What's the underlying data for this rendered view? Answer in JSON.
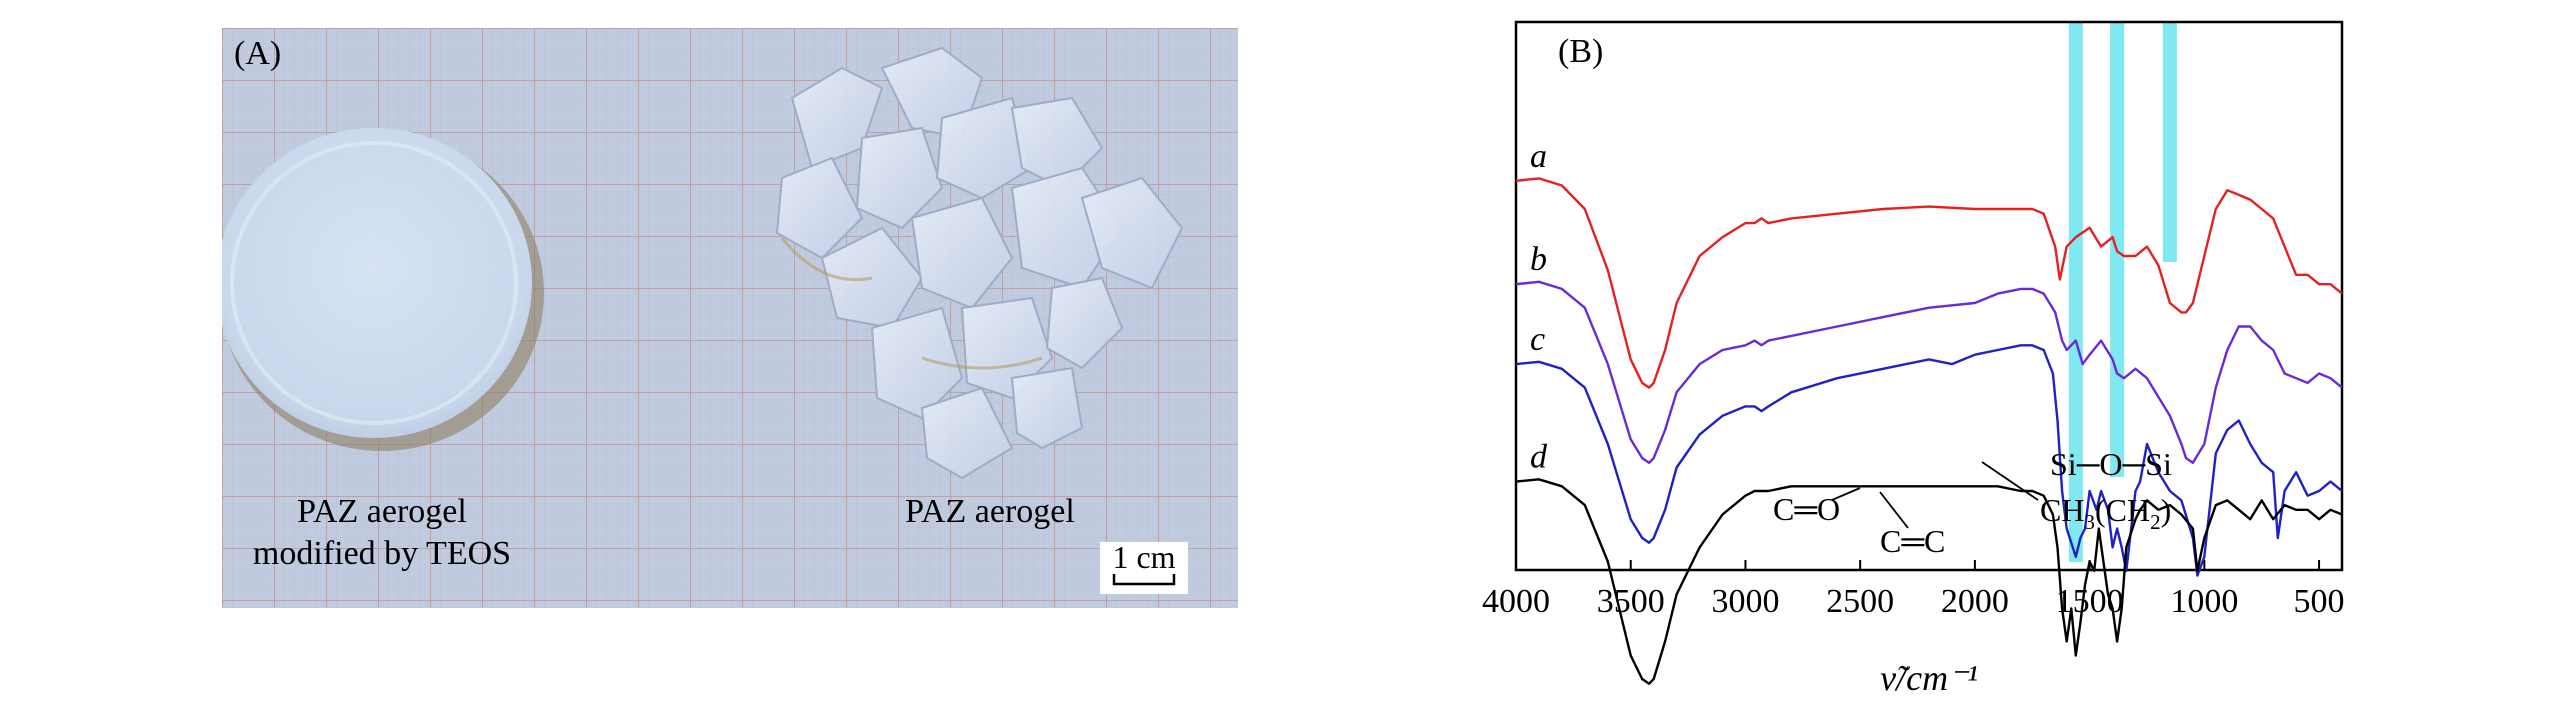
{
  "photo_panel": {
    "label": "(A)",
    "left_sample_caption": [
      "PAZ aerogel",
      "modified by TEOS"
    ],
    "right_sample_caption": "PAZ aerogel",
    "scale_bar_label": "1 cm"
  },
  "chart_data": {
    "type": "line",
    "panel_label": "(B)",
    "xlabel_html": "ν̃/cm⁻¹",
    "xlim": [
      4000,
      400
    ],
    "xticks": [
      4000,
      3500,
      3000,
      2500,
      2000,
      1500,
      1000,
      500
    ],
    "y_axis_ticks_shown": false,
    "highlight_bands": [
      1560,
      1380,
      1150
    ],
    "highlight_color": "#7fe8f0",
    "series": [
      {
        "name": "a",
        "color": "#e52020",
        "x": [
          4000,
          3900,
          3800,
          3700,
          3600,
          3500,
          3450,
          3420,
          3400,
          3350,
          3300,
          3200,
          3100,
          3000,
          2960,
          2930,
          2900,
          2800,
          2600,
          2400,
          2200,
          2000,
          1900,
          1800,
          1750,
          1700,
          1650,
          1630,
          1600,
          1560,
          1500,
          1450,
          1400,
          1380,
          1350,
          1300,
          1250,
          1200,
          1150,
          1100,
          1080,
          1050,
          1000,
          950,
          900,
          850,
          800,
          750,
          700,
          650,
          600,
          550,
          500,
          450,
          400
        ],
        "y": [
          0.86,
          0.865,
          0.85,
          0.8,
          0.67,
          0.48,
          0.43,
          0.42,
          0.43,
          0.5,
          0.6,
          0.7,
          0.74,
          0.77,
          0.77,
          0.78,
          0.77,
          0.78,
          0.79,
          0.8,
          0.805,
          0.8,
          0.8,
          0.8,
          0.8,
          0.79,
          0.72,
          0.65,
          0.72,
          0.74,
          0.76,
          0.72,
          0.74,
          0.71,
          0.7,
          0.7,
          0.72,
          0.68,
          0.6,
          0.58,
          0.58,
          0.6,
          0.7,
          0.8,
          0.84,
          0.83,
          0.82,
          0.8,
          0.78,
          0.72,
          0.66,
          0.66,
          0.64,
          0.64,
          0.62
        ]
      },
      {
        "name": "b",
        "color": "#6a2ad8",
        "x": [
          4000,
          3900,
          3800,
          3700,
          3600,
          3500,
          3450,
          3420,
          3400,
          3350,
          3300,
          3200,
          3100,
          3000,
          2960,
          2930,
          2900,
          2800,
          2600,
          2400,
          2200,
          2000,
          1900,
          1800,
          1750,
          1700,
          1650,
          1620,
          1600,
          1560,
          1530,
          1500,
          1450,
          1400,
          1380,
          1350,
          1300,
          1250,
          1200,
          1150,
          1100,
          1080,
          1050,
          1000,
          950,
          900,
          850,
          800,
          750,
          700,
          650,
          600,
          550,
          500,
          450,
          400
        ],
        "y": [
          0.64,
          0.645,
          0.63,
          0.59,
          0.47,
          0.31,
          0.27,
          0.26,
          0.27,
          0.33,
          0.41,
          0.47,
          0.5,
          0.51,
          0.52,
          0.51,
          0.52,
          0.53,
          0.55,
          0.57,
          0.59,
          0.6,
          0.62,
          0.63,
          0.63,
          0.62,
          0.58,
          0.52,
          0.5,
          0.52,
          0.47,
          0.49,
          0.52,
          0.48,
          0.45,
          0.44,
          0.46,
          0.44,
          0.4,
          0.36,
          0.3,
          0.27,
          0.26,
          0.3,
          0.42,
          0.5,
          0.55,
          0.55,
          0.52,
          0.5,
          0.45,
          0.44,
          0.43,
          0.45,
          0.44,
          0.42
        ]
      },
      {
        "name": "c",
        "color": "#2020c8",
        "x": [
          4000,
          3900,
          3800,
          3700,
          3600,
          3500,
          3450,
          3420,
          3400,
          3350,
          3300,
          3200,
          3100,
          3000,
          2960,
          2930,
          2900,
          2800,
          2600,
          2400,
          2200,
          2100,
          2000,
          1900,
          1800,
          1750,
          1700,
          1660,
          1640,
          1620,
          1600,
          1560,
          1540,
          1520,
          1500,
          1470,
          1450,
          1420,
          1400,
          1380,
          1360,
          1340,
          1300,
          1280,
          1250,
          1200,
          1150,
          1100,
          1050,
          1030,
          1000,
          950,
          900,
          850,
          800,
          750,
          700,
          680,
          650,
          600,
          550,
          500,
          450,
          400
        ],
        "y": [
          0.47,
          0.475,
          0.46,
          0.42,
          0.3,
          0.14,
          0.1,
          0.09,
          0.1,
          0.16,
          0.25,
          0.32,
          0.36,
          0.38,
          0.38,
          0.37,
          0.38,
          0.41,
          0.44,
          0.46,
          0.48,
          0.47,
          0.49,
          0.5,
          0.51,
          0.51,
          0.5,
          0.45,
          0.35,
          0.2,
          0.12,
          0.06,
          0.1,
          0.12,
          0.2,
          0.16,
          0.2,
          0.16,
          0.08,
          0.12,
          0.08,
          0.03,
          0.2,
          0.22,
          0.3,
          0.24,
          0.2,
          0.18,
          0.1,
          0.02,
          0.06,
          0.28,
          0.33,
          0.35,
          0.3,
          0.26,
          0.24,
          0.1,
          0.2,
          0.24,
          0.19,
          0.2,
          0.22,
          0.2
        ]
      },
      {
        "name": "d",
        "color": "#000000",
        "x": [
          4000,
          3900,
          3800,
          3700,
          3600,
          3500,
          3450,
          3420,
          3400,
          3350,
          3300,
          3200,
          3100,
          3000,
          2960,
          2930,
          2900,
          2800,
          2600,
          2400,
          2200,
          2000,
          1900,
          1800,
          1750,
          1700,
          1660,
          1640,
          1620,
          1600,
          1580,
          1560,
          1540,
          1520,
          1500,
          1480,
          1460,
          1440,
          1420,
          1400,
          1380,
          1360,
          1340,
          1300,
          1280,
          1250,
          1200,
          1150,
          1100,
          1050,
          1030,
          1000,
          950,
          900,
          850,
          800,
          750,
          700,
          650,
          600,
          550,
          500,
          450,
          400
        ],
        "y": [
          0.22,
          0.225,
          0.21,
          0.17,
          0.05,
          -0.15,
          -0.2,
          -0.21,
          -0.2,
          -0.12,
          -0.02,
          0.08,
          0.15,
          0.19,
          0.2,
          0.2,
          0.2,
          0.21,
          0.21,
          0.21,
          0.21,
          0.21,
          0.21,
          0.2,
          0.2,
          0.19,
          0.15,
          0.08,
          -0.05,
          -0.12,
          -0.05,
          -0.15,
          -0.08,
          0.0,
          0.05,
          0.03,
          0.12,
          0.05,
          -0.02,
          -0.05,
          -0.12,
          -0.05,
          0.08,
          0.14,
          0.16,
          0.18,
          0.16,
          0.17,
          0.15,
          0.12,
          0.03,
          0.1,
          0.17,
          0.18,
          0.16,
          0.14,
          0.18,
          0.14,
          0.17,
          0.16,
          0.16,
          0.14,
          0.16,
          0.15
        ]
      }
    ],
    "annotations": {
      "co": "C═O",
      "cc": "C═C",
      "sios": "Si─O─Si",
      "ch3_main": "CH",
      "ch3_sub": "3",
      "ch3_mid": "(CH",
      "ch3_sub2": "2",
      "ch3_end": ")"
    }
  }
}
